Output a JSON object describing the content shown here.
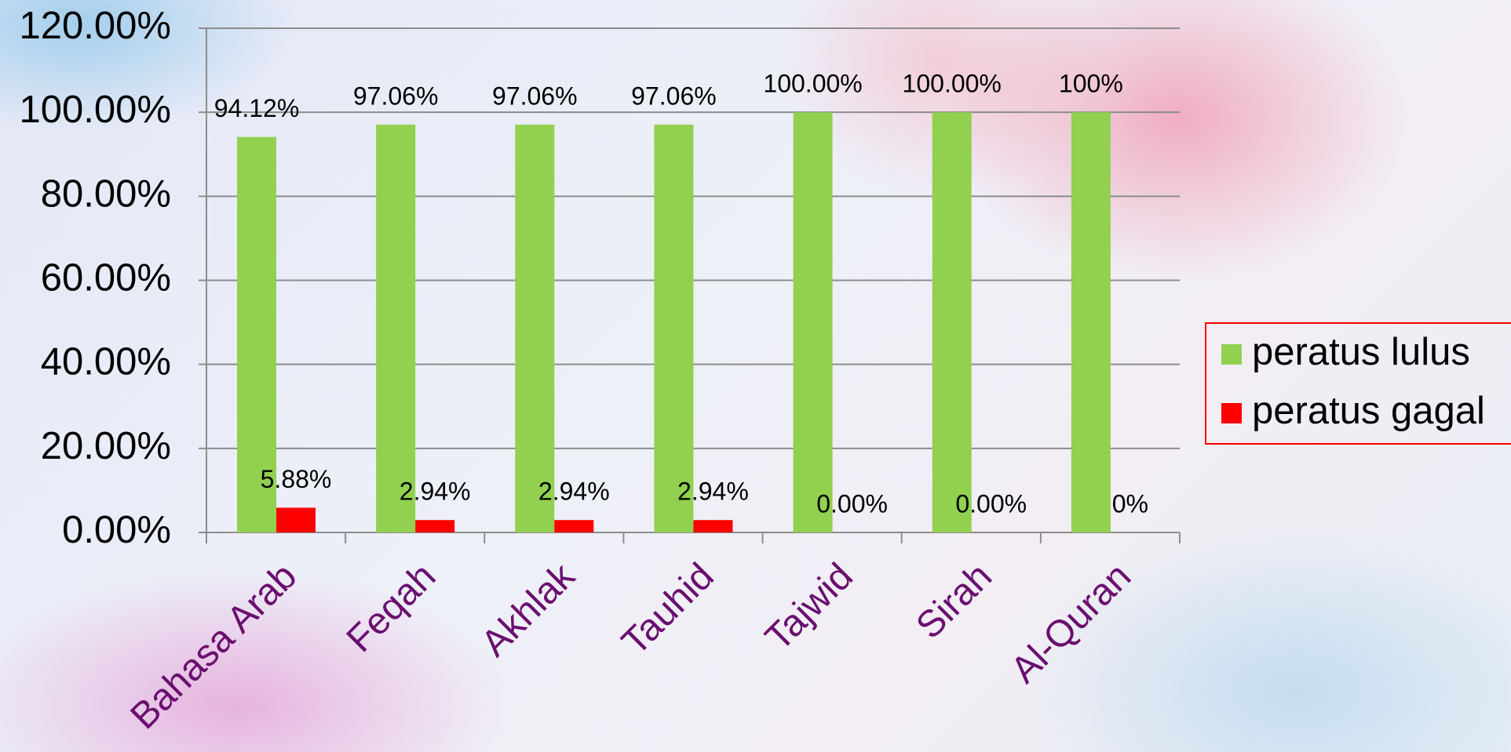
{
  "chart_data": {
    "type": "bar",
    "categories": [
      "Bahasa Arab",
      "Feqah",
      "Akhlak",
      "Tauhid",
      "Tajwid",
      "Sirah",
      "Al-Quran"
    ],
    "series": [
      {
        "name": "peratus lulus",
        "color": "#92d050",
        "values": [
          94.12,
          97.06,
          97.06,
          97.06,
          100,
          100,
          100
        ],
        "value_labels": [
          "94.12%",
          "97.06%",
          "97.06%",
          "97.06%",
          "100.00%",
          "100.00%",
          "100%"
        ]
      },
      {
        "name": "peratus gagal",
        "color": "#ff0000",
        "values": [
          5.88,
          2.94,
          2.94,
          2.94,
          0,
          0,
          0
        ],
        "value_labels": [
          "5.88%",
          "2.94%",
          "2.94%",
          "2.94%",
          "0.00%",
          "0.00%",
          "0%"
        ]
      }
    ],
    "ylim": [
      0,
      120
    ],
    "yticks": [
      {
        "value": 0,
        "label": "0.00%"
      },
      {
        "value": 20,
        "label": "20.00%"
      },
      {
        "value": 40,
        "label": "40.00%"
      },
      {
        "value": 60,
        "label": "60.00%"
      },
      {
        "value": 80,
        "label": "80.00%"
      },
      {
        "value": 100,
        "label": "100.00%"
      },
      {
        "value": 120,
        "label": "120.00%"
      }
    ],
    "grid": true,
    "legend": "right"
  }
}
